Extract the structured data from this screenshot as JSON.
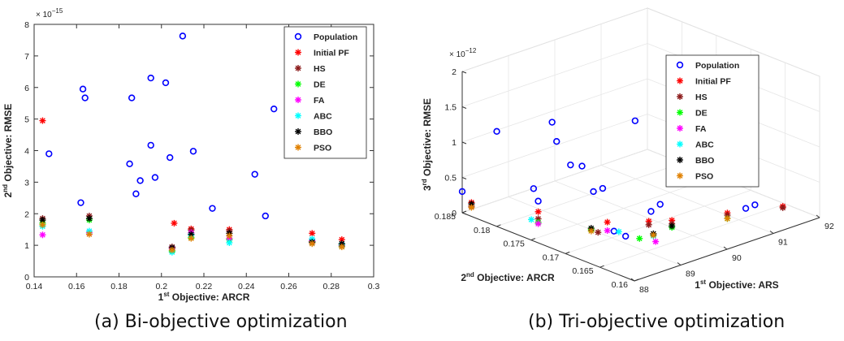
{
  "captions": {
    "a": "(a) Bi-objective optimization",
    "b": "(b) Tri-objective optimization"
  },
  "legend": [
    "Population",
    "Initial PF",
    "HS",
    "DE",
    "FA",
    "ABC",
    "BBO",
    "PSO"
  ],
  "colors": {
    "Population": "#0000ff",
    "Initial PF": "#ff0000",
    "HS": "#8b1a1a",
    "DE": "#00ff00",
    "FA": "#ff00ff",
    "ABC": "#00ffff",
    "BBO": "#000000",
    "PSO": "#e08000"
  },
  "chart_data": [
    {
      "type": "scatter",
      "title": "",
      "xlabel_sup": "st",
      "xlabel_pre": "1",
      "xlabel_post": " Objective: ARCR",
      "ylabel_sup": "nd",
      "ylabel_pre": "2",
      "ylabel_post": " Objective: RMSE",
      "exponent_label": "× 10",
      "exponent_power": "−15",
      "xlim": [
        0.14,
        0.3
      ],
      "ylim": [
        0,
        8
      ],
      "xticks": [
        "0.14",
        "0.16",
        "0.18",
        "0.2",
        "0.22",
        "0.24",
        "0.26",
        "0.28",
        "0.3"
      ],
      "yticks": [
        "0",
        "1",
        "2",
        "3",
        "4",
        "5",
        "6",
        "7",
        "8"
      ],
      "legend_position": "top-right",
      "series": [
        {
          "name": "Population",
          "marker": "circle",
          "points": [
            [
              0.147,
              3.9
            ],
            [
              0.162,
              2.35
            ],
            [
              0.163,
              5.95
            ],
            [
              0.164,
              5.67
            ],
            [
              0.185,
              3.58
            ],
            [
              0.186,
              5.67
            ],
            [
              0.188,
              2.63
            ],
            [
              0.19,
              3.05
            ],
            [
              0.195,
              6.3
            ],
            [
              0.195,
              4.17
            ],
            [
              0.197,
              3.15
            ],
            [
              0.202,
              6.15
            ],
            [
              0.204,
              3.78
            ],
            [
              0.21,
              7.63
            ],
            [
              0.215,
              3.98
            ],
            [
              0.224,
              2.17
            ],
            [
              0.244,
              3.25
            ],
            [
              0.249,
              1.93
            ],
            [
              0.253,
              5.32
            ]
          ]
        },
        {
          "name": "Initial PF",
          "marker": "star",
          "points": [
            [
              0.144,
              4.95
            ],
            [
              0.206,
              1.7
            ],
            [
              0.214,
              1.52
            ],
            [
              0.232,
              1.5
            ],
            [
              0.271,
              1.38
            ],
            [
              0.285,
              1.18
            ]
          ]
        },
        {
          "name": "HS",
          "marker": "star",
          "points": [
            [
              0.144,
              1.85
            ],
            [
              0.166,
              1.93
            ],
            [
              0.205,
              0.95
            ],
            [
              0.214,
              1.48
            ],
            [
              0.232,
              1.45
            ],
            [
              0.271,
              1.12
            ],
            [
              0.285,
              1.05
            ]
          ]
        },
        {
          "name": "DE",
          "marker": "star",
          "points": [
            [
              0.144,
              1.7
            ],
            [
              0.166,
              1.8
            ],
            [
              0.205,
              0.82
            ],
            [
              0.214,
              1.25
            ],
            [
              0.232,
              1.18
            ],
            [
              0.271,
              1.1
            ],
            [
              0.285,
              0.98
            ]
          ]
        },
        {
          "name": "FA",
          "marker": "star",
          "points": [
            [
              0.144,
              1.33
            ],
            [
              0.166,
              1.4
            ],
            [
              0.205,
              0.9
            ],
            [
              0.214,
              1.4
            ],
            [
              0.232,
              1.22
            ],
            [
              0.271,
              1.15
            ],
            [
              0.285,
              1.0
            ]
          ]
        },
        {
          "name": "ABC",
          "marker": "star",
          "points": [
            [
              0.144,
              1.6
            ],
            [
              0.166,
              1.45
            ],
            [
              0.205,
              0.78
            ],
            [
              0.214,
              1.32
            ],
            [
              0.232,
              1.08
            ],
            [
              0.271,
              1.2
            ],
            [
              0.285,
              1.02
            ]
          ]
        },
        {
          "name": "BBO",
          "marker": "star",
          "points": [
            [
              0.144,
              1.8
            ],
            [
              0.166,
              1.85
            ],
            [
              0.205,
              0.92
            ],
            [
              0.214,
              1.35
            ],
            [
              0.232,
              1.38
            ],
            [
              0.271,
              1.1
            ],
            [
              0.285,
              1.05
            ]
          ]
        },
        {
          "name": "PSO",
          "marker": "star",
          "points": [
            [
              0.144,
              1.65
            ],
            [
              0.166,
              1.35
            ],
            [
              0.205,
              0.85
            ],
            [
              0.214,
              1.22
            ],
            [
              0.232,
              1.3
            ],
            [
              0.271,
              1.05
            ],
            [
              0.285,
              0.95
            ]
          ]
        }
      ]
    },
    {
      "type": "scatter",
      "title": "",
      "xlabel_sup": "st",
      "xlabel_pre": "1",
      "xlabel_post": " Objective: ARS",
      "ylabel_sup": "nd",
      "ylabel_pre": "2",
      "ylabel_post": " Objective: ARCR",
      "zlabel_sup": "rd",
      "zlabel_pre": "3",
      "zlabel_post": " Objective: RMSE",
      "exponent_label": "× 10",
      "exponent_power": "−12",
      "xlim": [
        88,
        92
      ],
      "ylim": [
        0.16,
        0.185
      ],
      "zlim": [
        0,
        2
      ],
      "xticks": [
        "88",
        "89",
        "90",
        "91",
        "92"
      ],
      "yticks": [
        "0.16",
        "0.165",
        "0.17",
        "0.175",
        "0.18",
        "0.185"
      ],
      "zticks": [
        "0",
        "0.5",
        "1",
        "1.5",
        "2"
      ],
      "legend_position": "top-right",
      "series": [
        {
          "name": "Population",
          "marker": "circle",
          "points": [
            [
              88.0,
              0.185,
              0.3
            ],
            [
              88.3,
              0.182,
              1.2
            ],
            [
              88.5,
              0.178,
              0.5
            ],
            [
              88.6,
              0.178,
              0.3
            ],
            [
              88.7,
              0.176,
              1.2
            ],
            [
              88.9,
              0.178,
              1.35
            ],
            [
              89.0,
              0.176,
              0.8
            ],
            [
              89.1,
              0.175,
              0.8
            ],
            [
              89.1,
              0.172,
              0.6
            ],
            [
              89.0,
              0.168,
              0.1
            ],
            [
              88.6,
              0.167,
              0.3
            ],
            [
              89.4,
              0.167,
              0.4
            ],
            [
              89.8,
              0.172,
              1.4
            ],
            [
              90.1,
              0.168,
              1.5
            ],
            [
              90.4,
              0.165,
              0.7
            ],
            [
              90.9,
              0.162,
              0.35
            ],
            [
              91.0,
              0.164,
              0.2
            ],
            [
              89.3,
              0.165,
              0.6
            ],
            [
              88.9,
              0.172,
              0.6
            ]
          ]
        },
        {
          "name": "Initial PF",
          "marker": "star",
          "points": [
            [
              88.2,
              0.185,
              0.1
            ],
            [
              88.6,
              0.178,
              0.15
            ],
            [
              89.2,
              0.172,
              0.1
            ],
            [
              89.5,
              0.168,
              0.2
            ],
            [
              90.0,
              0.168,
              0.1
            ],
            [
              90.9,
              0.166,
              0.08
            ],
            [
              91.8,
              0.164,
              0.05
            ]
          ]
        },
        {
          "name": "HS",
          "marker": "star",
          "points": [
            [
              88.2,
              0.185,
              0.05
            ],
            [
              88.6,
              0.178,
              0.05
            ],
            [
              89.0,
              0.172,
              0.0
            ],
            [
              89.5,
              0.168,
              0.15
            ],
            [
              90.0,
              0.168,
              0.05
            ],
            [
              90.9,
              0.166,
              0.05
            ],
            [
              91.8,
              0.164,
              0.03
            ]
          ]
        },
        {
          "name": "DE",
          "marker": "star",
          "points": [
            [
              88.6,
              0.178,
              0.0
            ],
            [
              89.0,
              0.173,
              0.0
            ],
            [
              89.3,
              0.168,
              0.0
            ],
            [
              90.0,
              0.168,
              0.0
            ],
            [
              90.9,
              0.166,
              0.0
            ]
          ]
        },
        {
          "name": "FA",
          "marker": "star",
          "points": [
            [
              88.6,
              0.178,
              -0.02
            ],
            [
              89.2,
              0.172,
              -0.02
            ],
            [
              89.5,
              0.167,
              -0.05
            ]
          ]
        },
        {
          "name": "ABC",
          "marker": "star",
          "points": [
            [
              88.6,
              0.179,
              0.0
            ],
            [
              89.3,
              0.171,
              -0.02
            ],
            [
              89.6,
              0.168,
              -0.03
            ]
          ]
        },
        {
          "name": "BBO",
          "marker": "star",
          "points": [
            [
              88.2,
              0.185,
              0.08
            ],
            [
              89.0,
              0.173,
              0.02
            ],
            [
              89.6,
              0.168,
              0.0
            ],
            [
              90.0,
              0.168,
              0.02
            ]
          ]
        },
        {
          "name": "PSO",
          "marker": "star",
          "points": [
            [
              88.2,
              0.185,
              0.03
            ],
            [
              89.0,
              0.173,
              -0.02
            ],
            [
              89.6,
              0.168,
              -0.02
            ],
            [
              90.9,
              0.166,
              0.0
            ]
          ]
        }
      ]
    }
  ]
}
